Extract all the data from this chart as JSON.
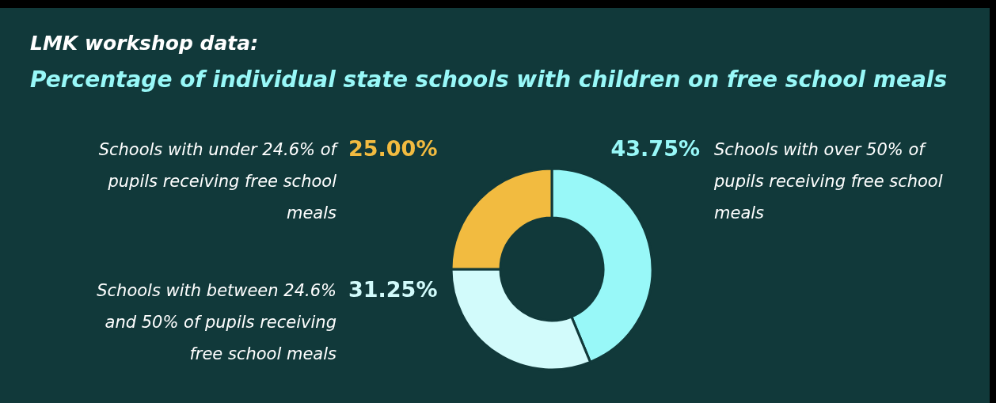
{
  "chart_data": {
    "type": "donut",
    "title": "LMK workshop data:",
    "subtitle": "Percentage of individual state schools with children on free school meals",
    "categories": [
      "Schools with over 50% of pupils receiving free school meals",
      "Schools with between 24.6% and 50% of pupils receiving free school meals",
      "Schools with under 24.6% of pupils receiving free school meals"
    ],
    "values": [
      43.75,
      31.25,
      25
    ],
    "colors": [
      "#98f8f8",
      "#d2fbfb",
      "#f2bb40"
    ],
    "value_labels": [
      "43.75%",
      "31.25%",
      "25.00%"
    ]
  }
}
